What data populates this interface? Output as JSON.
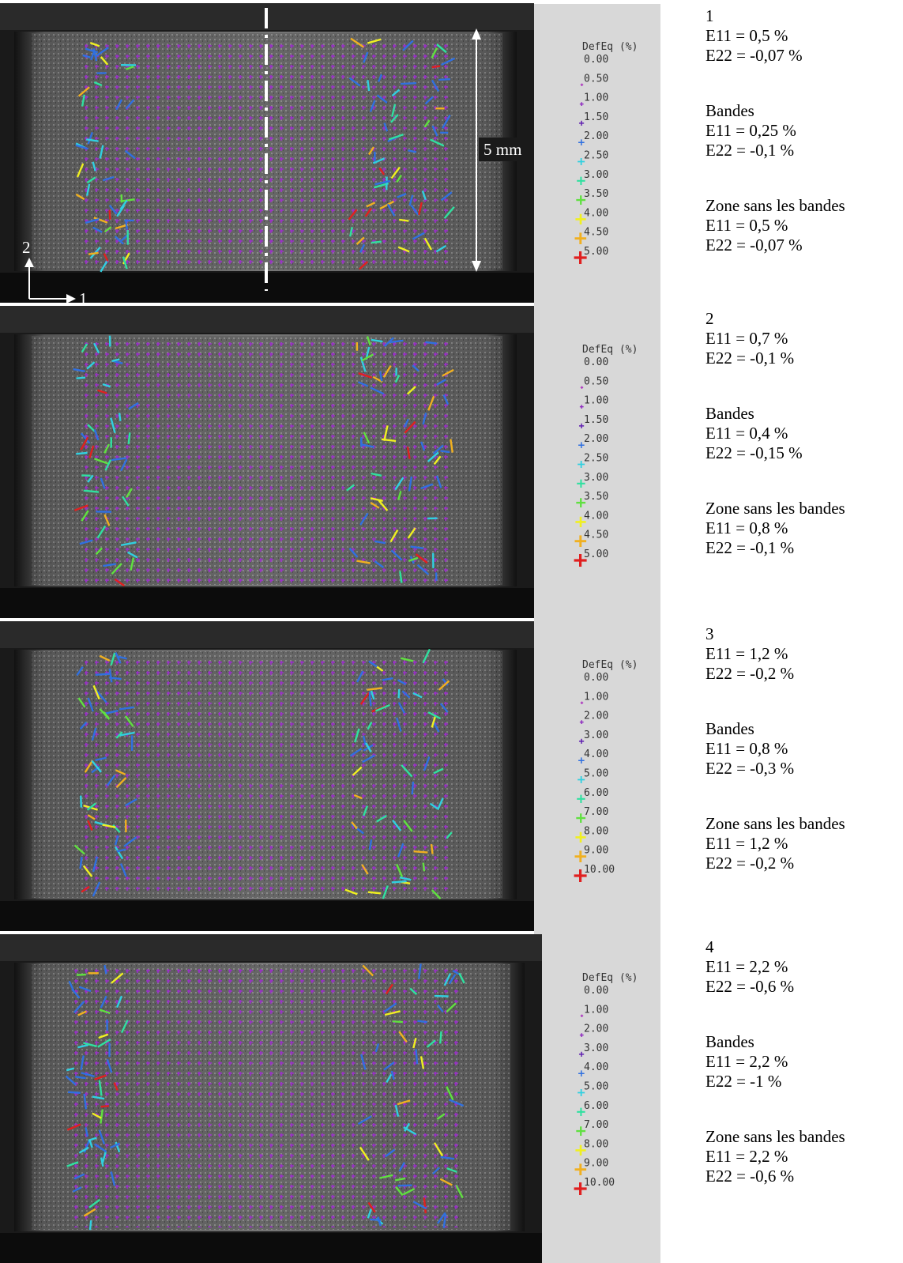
{
  "panels": [
    {
      "legend": {
        "title": "DefEq (%)",
        "ticks": [
          "0.00",
          "0.50",
          "1.00",
          "1.50",
          "2.00",
          "2.50",
          "3.00",
          "3.50",
          "4.00",
          "4.50",
          "5.00"
        ]
      },
      "blocks": [
        [
          "1",
          "E11 = 0,5 %",
          "E22 = -0,07 %"
        ],
        [
          "Bandes",
          "E11 = 0,25 %",
          "E22 = -0,1 %"
        ],
        [
          "Zone sans les bandes",
          "E11 = 0,5 %",
          "E22 = -0,07 %"
        ]
      ]
    },
    {
      "legend": {
        "title": "DefEq (%)",
        "ticks": [
          "0.00",
          "0.50",
          "1.00",
          "1.50",
          "2.00",
          "2.50",
          "3.00",
          "3.50",
          "4.00",
          "4.50",
          "5.00"
        ]
      },
      "blocks": [
        [
          "2",
          "E11 = 0,7 %",
          "E22 = -0,1 %"
        ],
        [
          "Bandes",
          "E11 = 0,4 %",
          "E22 = -0,15 %"
        ],
        [
          "Zone sans les bandes",
          "E11 = 0,8 %",
          "E22 = -0,1 %"
        ]
      ]
    },
    {
      "legend": {
        "title": "DefEq (%)",
        "ticks": [
          "0.00",
          "1.00",
          "2.00",
          "3.00",
          "4.00",
          "5.00",
          "6.00",
          "7.00",
          "8.00",
          "9.00",
          "10.00"
        ]
      },
      "blocks": [
        [
          "3",
          "E11 = 1,2 %",
          "E22 = -0,2 %"
        ],
        [
          "Bandes",
          "E11 = 0,8 %",
          "E22 = -0,3 %"
        ],
        [
          "Zone sans les bandes",
          "E11 = 1,2 %",
          "E22 = -0,2 %"
        ]
      ]
    },
    {
      "legend": {
        "title": "DefEq (%)",
        "ticks": [
          "0.00",
          "1.00",
          "2.00",
          "3.00",
          "4.00",
          "5.00",
          "6.00",
          "7.00",
          "8.00",
          "9.00",
          "10.00"
        ]
      },
      "blocks": [
        [
          "4",
          "E11 = 2,2 %",
          "E22 = -0,6 %"
        ],
        [
          "Bandes",
          "E11 = 2,2 %",
          "E22 = -1 %"
        ],
        [
          "Zone sans les bandes",
          "E11 = 2,2 %",
          "E22 = -0,6 %"
        ]
      ]
    }
  ],
  "annotations": {
    "scale": "5 mm",
    "axis_2": "2",
    "axis_1": "1"
  },
  "marker_colors": [
    "#ffffff",
    "#b040c0",
    "#9030c0",
    "#6020b0",
    "#3070e0",
    "#30d0e0",
    "#30e0a0",
    "#60e040",
    "#f0f020",
    "#f0b020",
    "#e02020"
  ]
}
